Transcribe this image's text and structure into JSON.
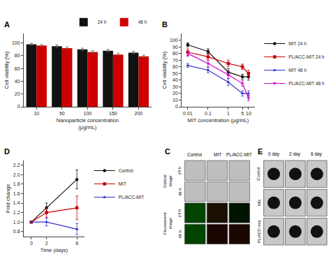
{
  "chart_data": [
    {
      "type": "bar",
      "title": "A",
      "categories": [
        10,
        50,
        100,
        150,
        200
      ],
      "series": [
        {
          "name": "24 h",
          "color": "#111111",
          "values": [
            98,
            95,
            90,
            88,
            85
          ],
          "error": [
            1.5,
            2,
            2,
            2,
            2
          ]
        },
        {
          "name": "48 h",
          "color": "#cc0000",
          "values": [
            96,
            92,
            86,
            82,
            79
          ],
          "error": [
            1.5,
            2,
            2,
            2,
            2
          ]
        }
      ],
      "xlabel": "Nanoparticle concentration\n(μg/mL)",
      "ylabel": "Cell viability (%)",
      "ylim": [
        0,
        115
      ],
      "yticks": [
        0,
        20,
        40,
        60,
        80,
        100
      ],
      "grid": false,
      "legend": "top"
    },
    {
      "type": "line",
      "title": "B",
      "log": "x",
      "x": [
        0.01,
        0.1,
        1,
        5,
        10
      ],
      "series": [
        {
          "name": "MIT 24 h",
          "color": "#111111",
          "marker": "circle",
          "values": [
            93,
            83,
            52,
            45,
            45
          ],
          "error": [
            3,
            4,
            5,
            4,
            5
          ]
        },
        {
          "name": "PL/ACC-MIT 24 h",
          "color": "#cc0000",
          "marker": "square",
          "values": [
            82,
            75,
            65,
            60,
            50
          ],
          "error": [
            5,
            5,
            5,
            4,
            5
          ]
        },
        {
          "name": "MIT 48 h",
          "color": "#3333cc",
          "marker": "triangle-up",
          "values": [
            62,
            55,
            37,
            20,
            20
          ],
          "error": [
            3,
            4,
            5,
            4,
            4
          ]
        },
        {
          "name": "PL/ACC-MIT 48 h",
          "color": "#cc00cc",
          "marker": "triangle-down",
          "values": [
            80,
            65,
            48,
            35,
            13
          ],
          "error": [
            4,
            5,
            5,
            4,
            4
          ]
        }
      ],
      "xlabel": "MIT concentration (μg/mL)",
      "ylabel": "Cell viability (%)",
      "xlim": [
        0.005,
        20
      ],
      "xticks": [
        0.01,
        0.1,
        1,
        5,
        10
      ],
      "ylim": [
        0,
        110
      ],
      "yticks": [
        0,
        10,
        20,
        30,
        40,
        50,
        60,
        70,
        80,
        90,
        100
      ],
      "grid": false,
      "legend": "right"
    },
    {
      "type": "line",
      "title": "D",
      "x": [
        0,
        2,
        6
      ],
      "series": [
        {
          "name": "Control",
          "color": "#111111",
          "marker": "circle",
          "values": [
            1.0,
            1.3,
            1.9
          ],
          "error": [
            0.0,
            0.1,
            0.2
          ]
        },
        {
          "name": "MIT",
          "color": "#cc0000",
          "marker": "square",
          "values": [
            1.0,
            1.2,
            1.3
          ],
          "error": [
            0.0,
            0.1,
            0.25
          ]
        },
        {
          "name": "PL/ACC-MIT",
          "color": "#3333cc",
          "marker": "triangle-up",
          "values": [
            1.0,
            1.0,
            0.85
          ],
          "error": [
            0.0,
            0.08,
            0.12
          ]
        }
      ],
      "xlabel": "Time (days)",
      "ylabel": "Fold change",
      "xlim": [
        -1,
        7
      ],
      "xticks": [
        0,
        2,
        6
      ],
      "ylim": [
        0.7,
        2.3
      ],
      "yticks": [
        0.8,
        {
          "value": 1.0,
          "label": "1.0"
        },
        1.2,
        1.4,
        1.6,
        1.8,
        {
          "value": 2.0,
          "label": "2.0"
        },
        2.2
      ],
      "grid": false,
      "legend": "right"
    },
    {
      "type": "image_grid",
      "title": "C",
      "categories": [
        "Control",
        "MIT",
        "PL/ACC-MIT"
      ],
      "series": [
        {
          "name": "Optical\nimage",
          "categories": [
            "24 h",
            "48 h"
          ],
          "color": "#bebebe"
        },
        {
          "name": "Fluorescent\nimage",
          "categories": [
            "24 h",
            "48 h"
          ],
          "colors": [
            "#004400",
            "#1a1000",
            "#001500",
            "#004400",
            "#1a0500",
            "#1a0800"
          ]
        }
      ]
    },
    {
      "type": "image_grid",
      "title": "E",
      "categories": [
        "0 day",
        "2 day",
        "6 day"
      ],
      "series": [
        {
          "name": "Control",
          "color": "#111111"
        },
        {
          "name": "Mix",
          "color": "#111111"
        },
        {
          "name": "PL/ACC-mix",
          "color": "#111111"
        }
      ]
    }
  ]
}
